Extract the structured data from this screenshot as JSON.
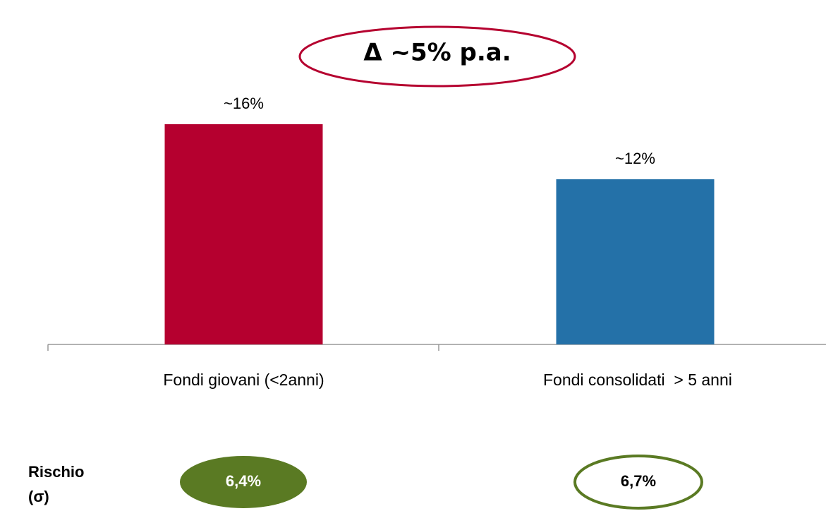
{
  "chart_data": {
    "type": "bar",
    "categories": [
      "Fondi giovani (<2anni)",
      "Fondi consolidati  > 5 anni"
    ],
    "values": [
      16,
      12
    ],
    "value_labels": [
      "~16%",
      "~12%"
    ],
    "colors": [
      "#b5002f",
      "#2471a8"
    ],
    "ylim": [
      0,
      16
    ],
    "grid": false,
    "annotations": {
      "delta": "Δ ~5% p.a.",
      "risk_label": [
        "Rischio",
        "(σ)"
      ],
      "risk_values": [
        "6,4%",
        "6,7%"
      ]
    }
  }
}
